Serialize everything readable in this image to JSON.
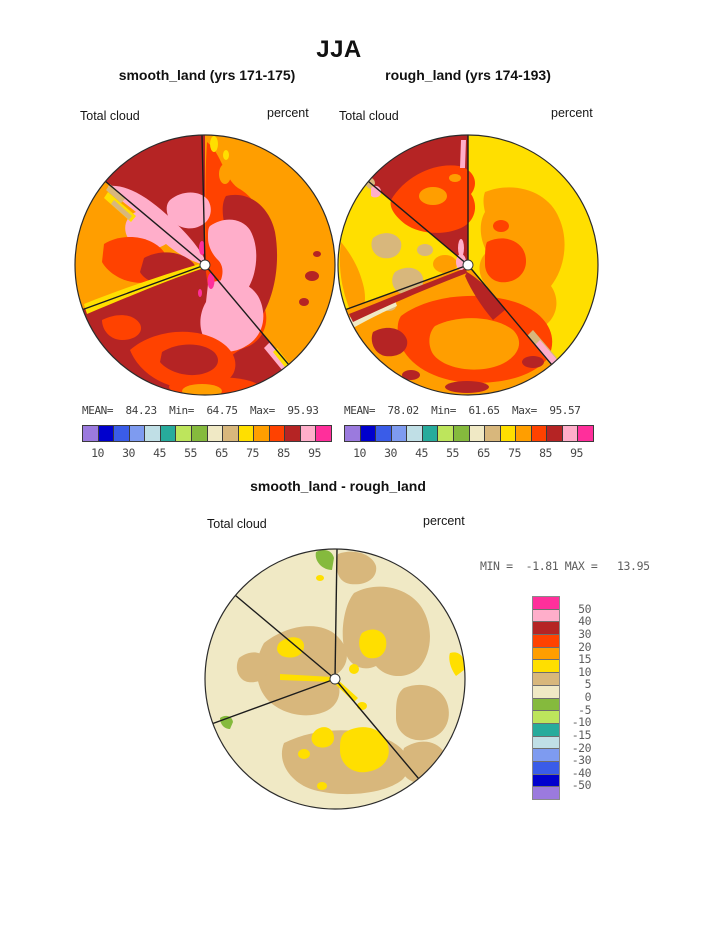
{
  "page": {
    "title": "JJA"
  },
  "panels": {
    "left": {
      "subtitle": "smooth_land (yrs 171-175)",
      "field_label": "Total cloud",
      "units_label": "percent",
      "stats_text": "MEAN=  84.23  Min=  64.75  Max=  95.93"
    },
    "right": {
      "subtitle": "rough_land (yrs 174-193)",
      "field_label": "Total cloud",
      "units_label": "percent",
      "stats_text": "MEAN=  78.02  Min=  61.65  Max=  95.57"
    },
    "diff": {
      "title": "smooth_land - rough_land",
      "field_label": "Total cloud",
      "units_label": "percent",
      "minmax_text": "MIN =  -1.81 MAX =   13.95"
    }
  },
  "palette": {
    "purple": "#9b7ade",
    "navy": "#0000cd",
    "blue": "#3a5ce8",
    "cornflower": "#7e9bf0",
    "paleblue": "#c0dfe6",
    "teal": "#27ab9c",
    "lightgreen": "#bde55c",
    "green": "#85ba3d",
    "cream": "#f0e9c5",
    "tan": "#d8b77c",
    "yellow": "#ffdf00",
    "orange": "#ff9e00",
    "redorange": "#ff4200",
    "darkred": "#b52424",
    "pink": "#ffaeca",
    "magenta": "#ff2f9b"
  },
  "colorbar_top": {
    "cell_order_low_to_high": [
      "purple",
      "navy",
      "blue",
      "cornflower",
      "paleblue",
      "teal",
      "lightgreen",
      "green",
      "cream",
      "tan",
      "yellow",
      "orange",
      "redorange",
      "darkred",
      "pink",
      "magenta"
    ],
    "labels": [
      "10",
      "30",
      "45",
      "55",
      "65",
      "75",
      "85",
      "95"
    ]
  },
  "colorbar_diff": {
    "cell_order_top_to_bottom": [
      "magenta",
      "pink",
      "darkred",
      "redorange",
      "orange",
      "yellow",
      "tan",
      "cream",
      "green",
      "lightgreen",
      "teal",
      "paleblue",
      "cornflower",
      "blue",
      "navy",
      "purple"
    ],
    "labels": [
      "50",
      "40",
      "30",
      "20",
      "15",
      "10",
      "5",
      "0",
      "-5",
      "-10",
      "-15",
      "-20",
      "-30",
      "-40",
      "-50"
    ]
  },
  "chart_data": [
    {
      "type": "heatmap",
      "projection": "polar contour map",
      "panel": "top-left",
      "title": "smooth_land (yrs 171-175)",
      "field": "Total cloud",
      "units": "percent",
      "stats": {
        "mean": 84.23,
        "min": 64.75,
        "max": 95.93
      },
      "levels": [
        10,
        20,
        30,
        40,
        45,
        50,
        55,
        60,
        65,
        70,
        75,
        80,
        85,
        90,
        95
      ],
      "legend_position": "below",
      "sector_line_angles_deg_clockwise_from_north": [
        0,
        140,
        250,
        310
      ],
      "field_summary": "mostly 80-95%: dark red and red-orange dominate with large pink (90-95) regions around the pole, orange (70-80) sectors upper-right and left, yellow (70) stripes along sector lines, magenta (>95) specks near pole"
    },
    {
      "type": "heatmap",
      "projection": "polar contour map",
      "panel": "top-right",
      "title": "rough_land (yrs 174-193)",
      "field": "Total cloud",
      "units": "percent",
      "stats": {
        "mean": 78.02,
        "min": 61.65,
        "max": 95.57
      },
      "levels": [
        10,
        20,
        30,
        40,
        45,
        50,
        55,
        60,
        65,
        70,
        75,
        80,
        85,
        90,
        95
      ],
      "legend_position": "below",
      "sector_line_angles_deg_clockwise_from_north": [
        0,
        140,
        250,
        310
      ],
      "field_summary": "mostly 65-85%: yellow and orange dominate, red-orange/dark red bands in top and bottom sectors, tan patches (60-65) in left sector, small pink and cream slivers"
    },
    {
      "type": "heatmap",
      "projection": "polar contour map",
      "panel": "bottom-difference",
      "title": "smooth_land - rough_land",
      "field": "Total cloud",
      "units": "percent",
      "stats": {
        "min": -1.81,
        "max": 13.95
      },
      "levels": [
        -50,
        -40,
        -30,
        -20,
        -15,
        -10,
        -5,
        0,
        5,
        10,
        15,
        20,
        30,
        40,
        50
      ],
      "legend_position": "right",
      "sector_line_angles_deg_clockwise_from_north": [
        0,
        140,
        250,
        310
      ],
      "field_summary": "mostly 0-10 (cream and tan blobs), yellow patches (10-15) center-right and bottom, two small green (-5 to -10) patches at top and left rim"
    }
  ]
}
